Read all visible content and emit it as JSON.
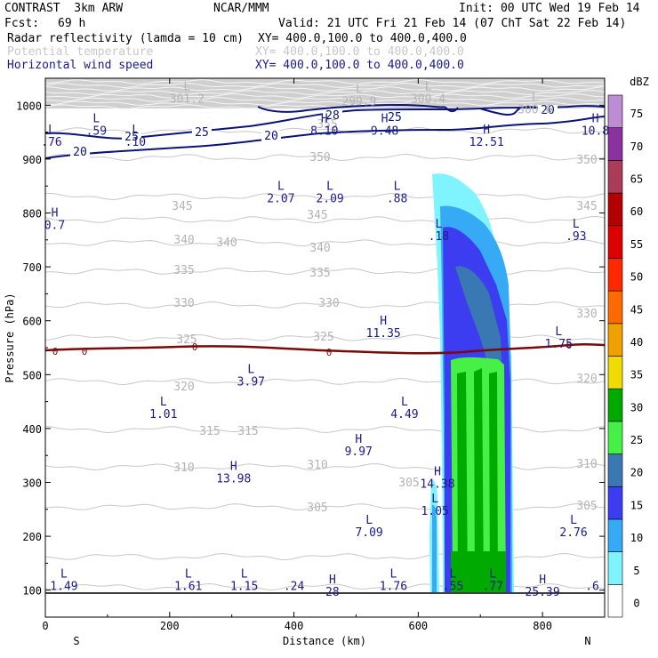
{
  "header": {
    "model": "CONTRAST  3km ARW",
    "org": "NCAR/MMM",
    "init": "Init: 00 UTC Wed 19 Feb 14",
    "fcst_label": "Fcst:",
    "fcst_value": "69 h",
    "valid": "Valid: 21 UTC Fri 21 Feb 14 (07 ChT Sat 22 Feb 14)",
    "fields": [
      {
        "name": "Radar reflectivity (lamda = 10 cm)",
        "xy": "XY= 400.0,100.0 to 400.0,400.0",
        "color": "#000000"
      },
      {
        "name": "Potential temperature",
        "xy": "XY= 400.0,100.0 to 400.0,400.0",
        "color": "#b4b4b4"
      },
      {
        "name": "Horizontal wind speed",
        "xy": "XY= 400.0,100.0 to 400.0,400.0",
        "color": "#0a0a78"
      }
    ]
  },
  "chart_data": {
    "type": "cross-section",
    "xlabel": "Distance (km)",
    "ylabel": "Pressure (hPa)",
    "xlim": [
      0,
      900
    ],
    "ylim": [
      1050,
      50
    ],
    "x_ticks": [
      "0",
      "200",
      "400",
      "600",
      "800"
    ],
    "x_tick_values": [
      0,
      200,
      400,
      600,
      800
    ],
    "y_ticks": [
      "100",
      "200",
      "300",
      "400",
      "500",
      "600",
      "700",
      "800",
      "900",
      "1000"
    ],
    "y_tick_values": [
      100,
      200,
      300,
      400,
      500,
      600,
      700,
      800,
      900,
      1000
    ],
    "axis_ends": {
      "left": "S",
      "right": "N"
    },
    "colorbar": {
      "unit": "dBZ",
      "levels": [
        "0",
        "5",
        "10",
        "15",
        "20",
        "25",
        "30",
        "35",
        "40",
        "45",
        "50",
        "55",
        "60",
        "65",
        "70",
        "75"
      ],
      "colors": [
        "#ffffff",
        "#7ff4ff",
        "#36aaf4",
        "#3c3cf0",
        "#3a78b4",
        "#46f046",
        "#00aa00",
        "#f0dc00",
        "#f0a000",
        "#ff6a00",
        "#ff2800",
        "#dc0000",
        "#b40000",
        "#aa3c5a",
        "#8c32a0",
        "#be8cd2"
      ]
    },
    "wind_contours": [
      "20",
      "25",
      "28",
      "25",
      "20",
      "25",
      "20"
    ],
    "theta_contours": [
      "355",
      "350",
      "350",
      "345",
      "345",
      "345",
      "340",
      "340",
      "340",
      "335",
      "335",
      "330",
      "330",
      "330",
      "325",
      "325",
      "320",
      "320",
      "315",
      "315",
      "310",
      "310",
      "310",
      "305",
      "305",
      "305"
    ],
    "zero_line_labels": [
      "0",
      "0",
      "0",
      "0",
      "0"
    ],
    "extrema_blue": [
      {
        "type": "L",
        "value": "1.49",
        "x": 30,
        "p": 100
      },
      {
        "type": "L",
        "value": "1.61",
        "x": 230,
        "p": 100
      },
      {
        "type": "L",
        "value": "1.15",
        "x": 320,
        "p": 100
      },
      {
        "type": "",
        "value": ".24",
        "x": 400,
        "p": 100
      },
      {
        "type": "H",
        "value": "28",
        "x": 462,
        "p": 90
      },
      {
        "type": "L",
        "value": "1.76",
        "x": 560,
        "p": 100
      },
      {
        "type": "L",
        "value": ".55",
        "x": 656,
        "p": 100
      },
      {
        "type": "L",
        "value": ".77",
        "x": 720,
        "p": 100
      },
      {
        "type": "H",
        "value": "25.39",
        "x": 800,
        "p": 90
      },
      {
        "type": "",
        "value": ".6",
        "x": 880,
        "p": 100
      },
      {
        "type": "L",
        "value": "7.09",
        "x": 521,
        "p": 200
      },
      {
        "type": "L",
        "value": "2.76",
        "x": 850,
        "p": 200
      },
      {
        "type": "L",
        "value": "1.05",
        "x": 627,
        "p": 240
      },
      {
        "type": "H",
        "value": "13.98",
        "x": 303,
        "p": 300
      },
      {
        "type": "H",
        "value": "14.38",
        "x": 631,
        "p": 290
      },
      {
        "type": "H",
        "value": "9.97",
        "x": 504,
        "p": 350
      },
      {
        "type": "L",
        "value": "1.01",
        "x": 190,
        "p": 420
      },
      {
        "type": "L",
        "value": "4.49",
        "x": 578,
        "p": 420
      },
      {
        "type": "L",
        "value": "3.97",
        "x": 331,
        "p": 480
      },
      {
        "type": "L",
        "value": "1.75",
        "x": 826,
        "p": 550
      },
      {
        "type": "H",
        "value": "11.35",
        "x": 544,
        "p": 570
      },
      {
        "type": "H",
        "value": "0.7",
        "x": 15,
        "p": 770
      },
      {
        "type": "L",
        "value": ".18",
        "x": 633,
        "p": 750
      },
      {
        "type": "L",
        "value": ".93",
        "x": 854,
        "p": 750
      },
      {
        "type": "L",
        "value": "2.07",
        "x": 379,
        "p": 820
      },
      {
        "type": "L",
        "value": "2.09",
        "x": 458,
        "p": 820
      },
      {
        "type": "L",
        "value": ".88",
        "x": 566,
        "p": 820
      },
      {
        "type": "L",
        "value": ".76",
        "x": 10,
        "p": 925
      },
      {
        "type": "L",
        "value": ".59",
        "x": 82,
        "p": 945
      },
      {
        "type": "L",
        "value": ".10",
        "x": 145,
        "p": 925
      },
      {
        "type": "H",
        "value": "8.10",
        "x": 449,
        "p": 945
      },
      {
        "type": "H",
        "value": "9.48",
        "x": 546,
        "p": 945
      },
      {
        "type": "H",
        "value": "12.51",
        "x": 710,
        "p": 925
      },
      {
        "type": "H",
        "value": "10.8",
        "x": 885,
        "p": 945
      }
    ],
    "extrema_gray": [
      {
        "type": "L",
        "value": "301.2",
        "x": 228,
        "p": 1005
      },
      {
        "type": "L",
        "value": "299.9",
        "x": 505,
        "p": 1000
      },
      {
        "type": "L",
        "value": "300.4",
        "x": 616,
        "p": 1005
      },
      {
        "type": "L",
        "value": "300.6",
        "x": 788,
        "p": 985
      }
    ]
  }
}
